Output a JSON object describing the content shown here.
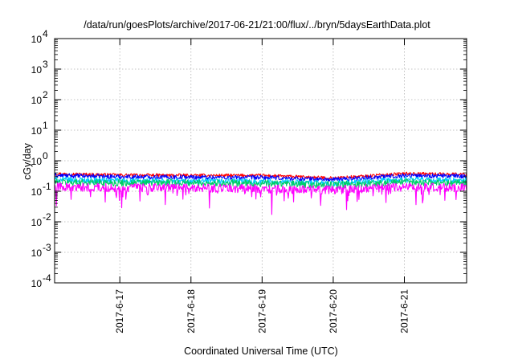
{
  "chart_data": {
    "type": "line",
    "title": "/data/run/goesPlots/archive/2017-06-21/21:00/flux/../bryn/5daysEarthData.plot",
    "xlabel": "Coordinated Universal Time (UTC)",
    "ylabel": "cGy/day",
    "yscale": "log",
    "ylim": [
      0.0001,
      10000
    ],
    "y_ticks": [
      {
        "base": "10",
        "exp": "4",
        "value": 10000
      },
      {
        "base": "10",
        "exp": "3",
        "value": 1000
      },
      {
        "base": "10",
        "exp": "2",
        "value": 100
      },
      {
        "base": "10",
        "exp": "1",
        "value": 10
      },
      {
        "base": "10",
        "exp": "0",
        "value": 1
      },
      {
        "base": "10",
        "exp": "-1",
        "value": 0.1
      },
      {
        "base": "10",
        "exp": "-2",
        "value": 0.01
      },
      {
        "base": "10",
        "exp": "-3",
        "value": 0.001
      },
      {
        "base": "10",
        "exp": "-4",
        "value": 0.0001
      }
    ],
    "xlim": [
      "2017-06-16 02:00",
      "2017-06-21 21:00"
    ],
    "x_ticks": [
      "2017-6-17",
      "2017-6-18",
      "2017-6-19",
      "2017-6-20",
      "2017-6-21"
    ],
    "grid": true,
    "x": [
      "2017-06-16",
      "2017-06-17",
      "2017-06-18",
      "2017-06-19",
      "2017-06-20",
      "2017-06-21",
      "2017-06-21 21:00"
    ],
    "series": [
      {
        "color": "#ff0000",
        "values": [
          0.38,
          0.34,
          0.33,
          0.33,
          0.27,
          0.38,
          0.36
        ]
      },
      {
        "color": "#0000ff",
        "values": [
          0.33,
          0.3,
          0.29,
          0.28,
          0.24,
          0.33,
          0.31
        ]
      },
      {
        "color": "#00ccff",
        "values": [
          0.24,
          0.22,
          0.21,
          0.21,
          0.18,
          0.24,
          0.22
        ]
      },
      {
        "color": "#00cc66",
        "values": [
          0.2,
          0.19,
          0.19,
          0.18,
          0.16,
          0.2,
          0.19
        ]
      },
      {
        "color": "#ff00ff",
        "values": [
          0.14,
          0.13,
          0.13,
          0.12,
          0.11,
          0.14,
          0.13
        ]
      }
    ]
  }
}
